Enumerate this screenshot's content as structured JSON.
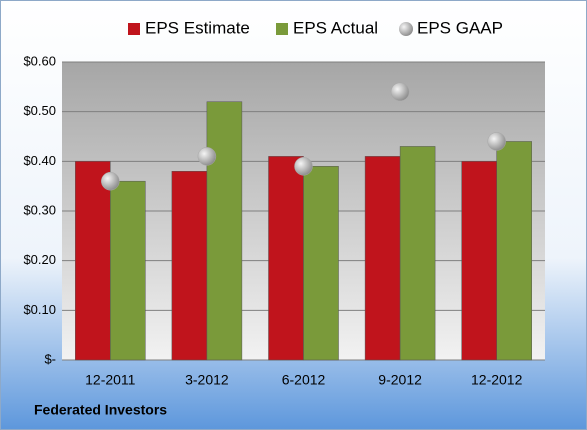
{
  "chart_data": {
    "type": "bar",
    "categories": [
      "12-2011",
      "3-2012",
      "6-2012",
      "9-2012",
      "12-2012"
    ],
    "series": [
      {
        "name": "EPS Estimate",
        "color": "#c0141c",
        "values": [
          0.4,
          0.38,
          0.41,
          0.41,
          0.4
        ]
      },
      {
        "name": "EPS Actual",
        "color": "#7a9a3a",
        "values": [
          0.36,
          0.52,
          0.39,
          0.43,
          0.44
        ]
      },
      {
        "name": "EPS GAAP",
        "type": "scatter",
        "color": "#a8a8a8",
        "values": [
          0.36,
          0.41,
          0.39,
          0.54,
          0.44
        ]
      }
    ],
    "ylim": [
      0,
      0.6
    ],
    "yticks": [
      {
        "value": 0,
        "label": "$-"
      },
      {
        "value": 0.1,
        "label": "$0.10"
      },
      {
        "value": 0.2,
        "label": "$0.20"
      },
      {
        "value": 0.3,
        "label": "$0.30"
      },
      {
        "value": 0.4,
        "label": "$0.40"
      },
      {
        "value": 0.5,
        "label": "$0.50"
      },
      {
        "value": 0.6,
        "label": "$0.60"
      }
    ],
    "grid": true,
    "legend": "top",
    "footer": "Federated Investors"
  }
}
